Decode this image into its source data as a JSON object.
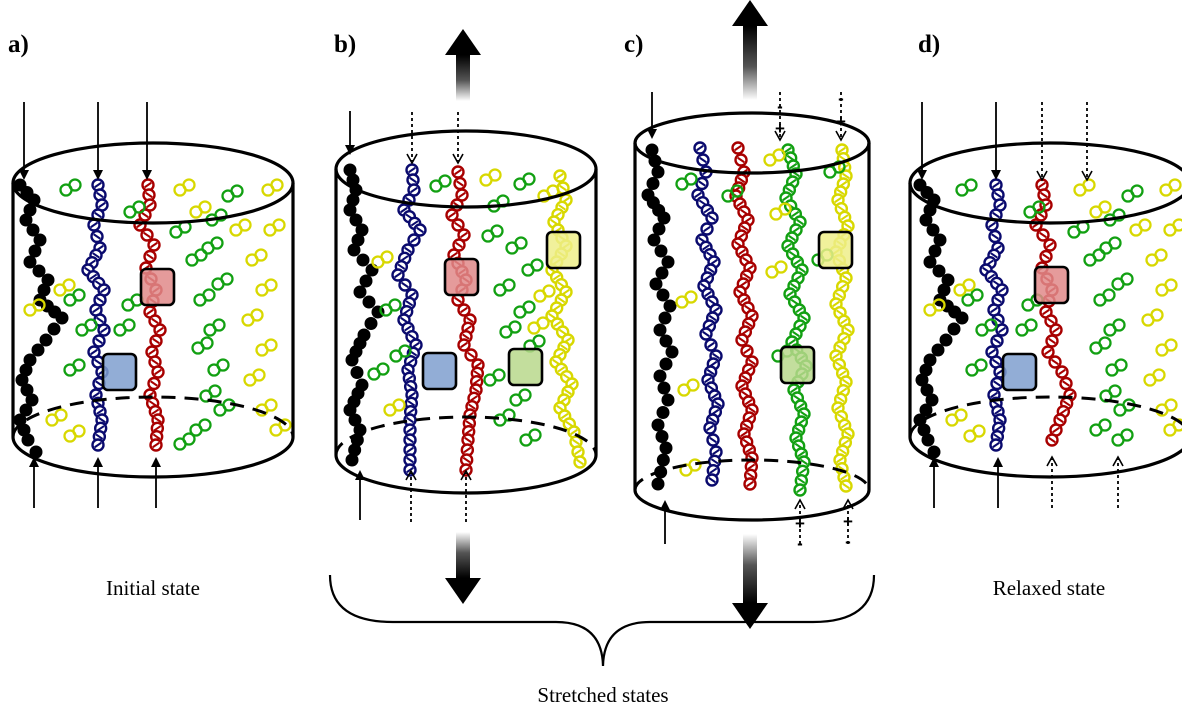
{
  "panels": [
    {
      "id": "a",
      "label": "a)",
      "caption": "Initial state"
    },
    {
      "id": "b",
      "label": "b)",
      "caption": ""
    },
    {
      "id": "c",
      "label": "c)",
      "caption": ""
    },
    {
      "id": "d",
      "label": "d)",
      "caption": "Relaxed state"
    }
  ],
  "group_caption": "Stretched states",
  "sign_plus": "+",
  "sign_minus": "-",
  "colors": {
    "chain_black": "#000000",
    "chain_blue": "#0a0a6e",
    "chain_red": "#a80000",
    "chain_green": "#12a012",
    "chain_yellow": "#d8d800",
    "box_blue": "#7f9fcf",
    "box_red": "#e08a8a",
    "box_green": "#b9d88c",
    "box_yellow": "#eeee8a"
  }
}
